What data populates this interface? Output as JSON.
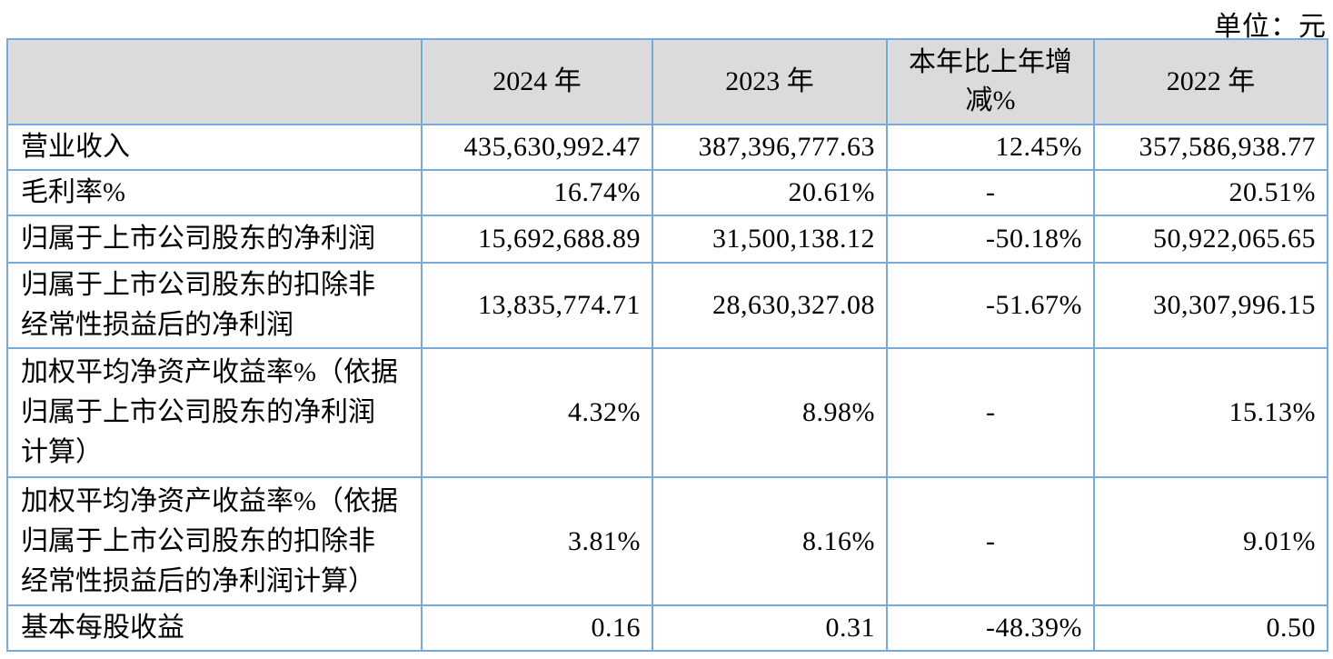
{
  "page": {
    "unit_label": "单位：元"
  },
  "colors": {
    "border": "#74AADD",
    "header_bg": "#DBDBDB",
    "text": "#000000",
    "page_bg": "#FFFFFF"
  },
  "table": {
    "columns": [
      "",
      "2024 年",
      "2023 年",
      "本年比上年增\n减%",
      "2022 年"
    ],
    "rows": [
      {
        "label": "营业收入",
        "values": [
          "435,630,992.47",
          "387,396,777.63",
          "12.45%",
          "357,586,938.77"
        ]
      },
      {
        "label": "毛利率%",
        "values": [
          "16.74%",
          "20.61%",
          "-",
          "20.51%"
        ]
      },
      {
        "label": "归属于上市公司股东的净利润",
        "values": [
          "15,692,688.89",
          "31,500,138.12",
          "-50.18%",
          "50,922,065.65"
        ]
      },
      {
        "label": "归属于上市公司股东的扣除非\n经常性损益后的净利润",
        "values": [
          "13,835,774.71",
          "28,630,327.08",
          "-51.67%",
          "30,307,996.15"
        ]
      },
      {
        "label": "加权平均净资产收益率%（依据\n归属于上市公司股东的净利润\n计算）",
        "values": [
          "4.32%",
          "8.98%",
          "-",
          "15.13%"
        ]
      },
      {
        "label": "加权平均净资产收益率%（依据\n归属于上市公司股东的扣除非\n经常性损益后的净利润计算）",
        "values": [
          "3.81%",
          "8.16%",
          "-",
          "9.01%"
        ]
      },
      {
        "label": "基本每股收益",
        "values": [
          "0.16",
          "0.31",
          "-48.39%",
          "0.50"
        ]
      }
    ]
  }
}
